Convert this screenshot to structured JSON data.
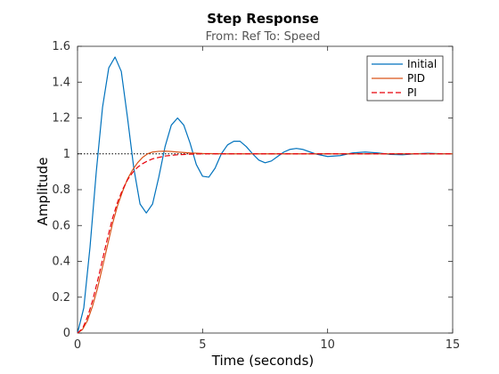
{
  "chart_data": {
    "type": "line",
    "title": "Step Response",
    "subtitle": "From: Ref  To: Speed",
    "xlabel": "Time (seconds)",
    "ylabel": "Amplitude",
    "xlim": [
      0,
      15
    ],
    "ylim": [
      0,
      1.6
    ],
    "xticks": [
      0,
      5,
      10,
      15
    ],
    "yticks": [
      0,
      0.2,
      0.4,
      0.6,
      0.8,
      1,
      1.2,
      1.4,
      1.6
    ],
    "xtick_labels": [
      "0",
      "5",
      "10",
      "15"
    ],
    "ytick_labels": [
      "0",
      "0.2",
      "0.4",
      "0.6",
      "0.8",
      "1",
      "1.2",
      "1.4",
      "1.6"
    ],
    "reference_line": {
      "y": 1,
      "style": "dotted",
      "color": "#000000"
    },
    "legend_location": "top-right",
    "grid": false,
    "series": [
      {
        "name": "Initial",
        "color": "#0072BD",
        "style": "solid",
        "points": [
          [
            0,
            0
          ],
          [
            0.25,
            0.14
          ],
          [
            0.5,
            0.48
          ],
          [
            0.75,
            0.9
          ],
          [
            1.0,
            1.26
          ],
          [
            1.25,
            1.48
          ],
          [
            1.5,
            1.54
          ],
          [
            1.75,
            1.46
          ],
          [
            2.0,
            1.2
          ],
          [
            2.25,
            0.92
          ],
          [
            2.5,
            0.72
          ],
          [
            2.75,
            0.67
          ],
          [
            3.0,
            0.72
          ],
          [
            3.25,
            0.87
          ],
          [
            3.5,
            1.04
          ],
          [
            3.75,
            1.16
          ],
          [
            4.0,
            1.2
          ],
          [
            4.25,
            1.16
          ],
          [
            4.5,
            1.06
          ],
          [
            4.75,
            0.94
          ],
          [
            5.0,
            0.875
          ],
          [
            5.25,
            0.87
          ],
          [
            5.5,
            0.92
          ],
          [
            5.75,
            1.0
          ],
          [
            6.0,
            1.05
          ],
          [
            6.25,
            1.07
          ],
          [
            6.5,
            1.07
          ],
          [
            6.75,
            1.04
          ],
          [
            7.0,
            1.0
          ],
          [
            7.25,
            0.965
          ],
          [
            7.5,
            0.95
          ],
          [
            7.75,
            0.96
          ],
          [
            8.0,
            0.985
          ],
          [
            8.25,
            1.01
          ],
          [
            8.5,
            1.025
          ],
          [
            8.75,
            1.03
          ],
          [
            9.0,
            1.025
          ],
          [
            9.5,
            1.0
          ],
          [
            10.0,
            0.985
          ],
          [
            10.5,
            0.99
          ],
          [
            11.0,
            1.005
          ],
          [
            11.5,
            1.01
          ],
          [
            12.0,
            1.005
          ],
          [
            12.5,
            0.997
          ],
          [
            13.0,
            0.995
          ],
          [
            13.5,
            1.0
          ],
          [
            14.0,
            1.003
          ],
          [
            14.5,
            1.001
          ],
          [
            15.0,
            1.0
          ]
        ]
      },
      {
        "name": "PID",
        "color": "#D95319",
        "style": "solid",
        "points": [
          [
            0,
            0
          ],
          [
            0.2,
            0.02
          ],
          [
            0.4,
            0.07
          ],
          [
            0.6,
            0.15
          ],
          [
            0.8,
            0.25
          ],
          [
            1.0,
            0.37
          ],
          [
            1.2,
            0.49
          ],
          [
            1.4,
            0.61
          ],
          [
            1.6,
            0.71
          ],
          [
            1.8,
            0.79
          ],
          [
            2.0,
            0.86
          ],
          [
            2.2,
            0.91
          ],
          [
            2.4,
            0.95
          ],
          [
            2.6,
            0.98
          ],
          [
            2.8,
            1.0
          ],
          [
            3.0,
            1.01
          ],
          [
            3.25,
            1.014
          ],
          [
            3.5,
            1.015
          ],
          [
            3.75,
            1.013
          ],
          [
            4.0,
            1.01
          ],
          [
            4.5,
            1.005
          ],
          [
            5.0,
            1.002
          ],
          [
            6.0,
            1.0
          ],
          [
            8.0,
            1.0
          ],
          [
            10.0,
            1.0
          ],
          [
            12.0,
            1.0
          ],
          [
            15.0,
            1.0
          ]
        ]
      },
      {
        "name": "PI",
        "color": "#E8000B",
        "style": "dashed",
        "points": [
          [
            0,
            0
          ],
          [
            0.2,
            0.025
          ],
          [
            0.4,
            0.09
          ],
          [
            0.6,
            0.18
          ],
          [
            0.8,
            0.29
          ],
          [
            1.0,
            0.41
          ],
          [
            1.2,
            0.53
          ],
          [
            1.4,
            0.64
          ],
          [
            1.6,
            0.73
          ],
          [
            1.8,
            0.8
          ],
          [
            2.0,
            0.855
          ],
          [
            2.2,
            0.895
          ],
          [
            2.4,
            0.925
          ],
          [
            2.6,
            0.945
          ],
          [
            2.8,
            0.96
          ],
          [
            3.0,
            0.972
          ],
          [
            3.5,
            0.988
          ],
          [
            4.0,
            0.995
          ],
          [
            4.5,
            0.998
          ],
          [
            5.0,
            1.0
          ],
          [
            6.0,
            1.0
          ],
          [
            8.0,
            1.0
          ],
          [
            10.0,
            1.0
          ],
          [
            12.0,
            1.0
          ],
          [
            15.0,
            1.0
          ]
        ]
      }
    ]
  }
}
